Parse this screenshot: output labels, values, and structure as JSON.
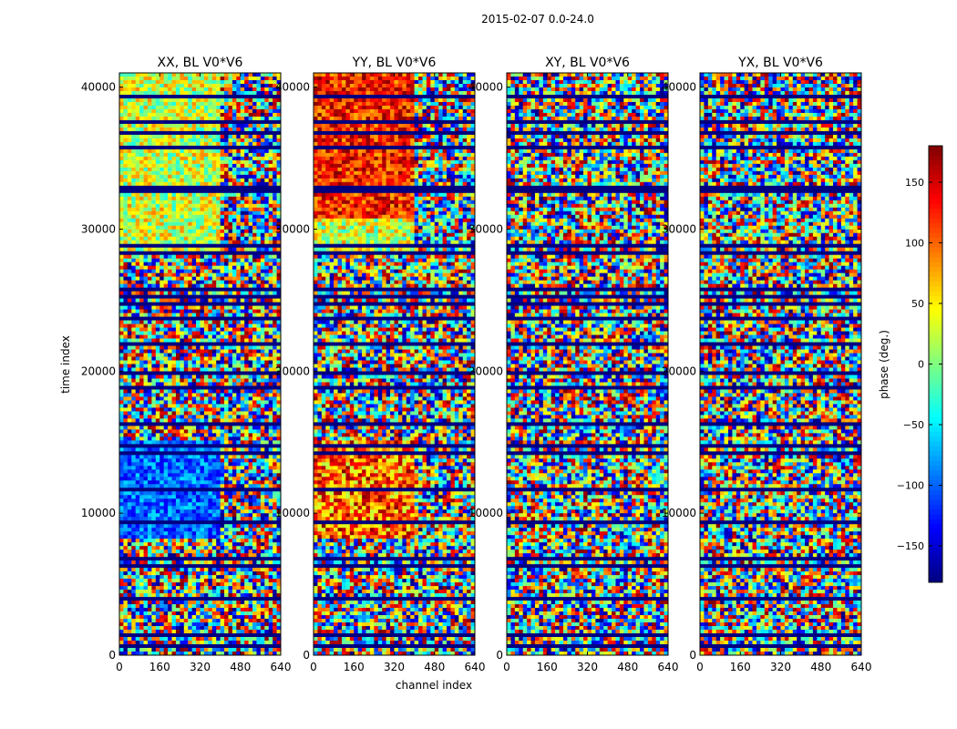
{
  "suptitle": "2015-02-07 0.0-24.0",
  "chart_data": {
    "type": "heatmap",
    "xlabel": "channel index",
    "ylabel": "time index",
    "xlim": [
      0,
      640
    ],
    "ylim": [
      0,
      41000
    ],
    "xticks": [
      0,
      160,
      320,
      480,
      640
    ],
    "yticks": [
      0,
      10000,
      20000,
      30000,
      40000
    ],
    "panels": [
      {
        "title": "XX, BL V0*V6"
      },
      {
        "title": "YY, BL V0*V6"
      },
      {
        "title": "XY, BL V0*V6"
      },
      {
        "title": "YX, BL V0*V6"
      }
    ],
    "colorbar": {
      "label": "phase (deg.)",
      "range": [
        -180,
        180
      ],
      "ticks": [
        -150,
        -100,
        -50,
        0,
        50,
        100,
        150
      ],
      "colormap": "jet"
    }
  },
  "colors": {
    "background": "#ffffff",
    "flagged": "#00007f",
    "axis": "#000000"
  }
}
